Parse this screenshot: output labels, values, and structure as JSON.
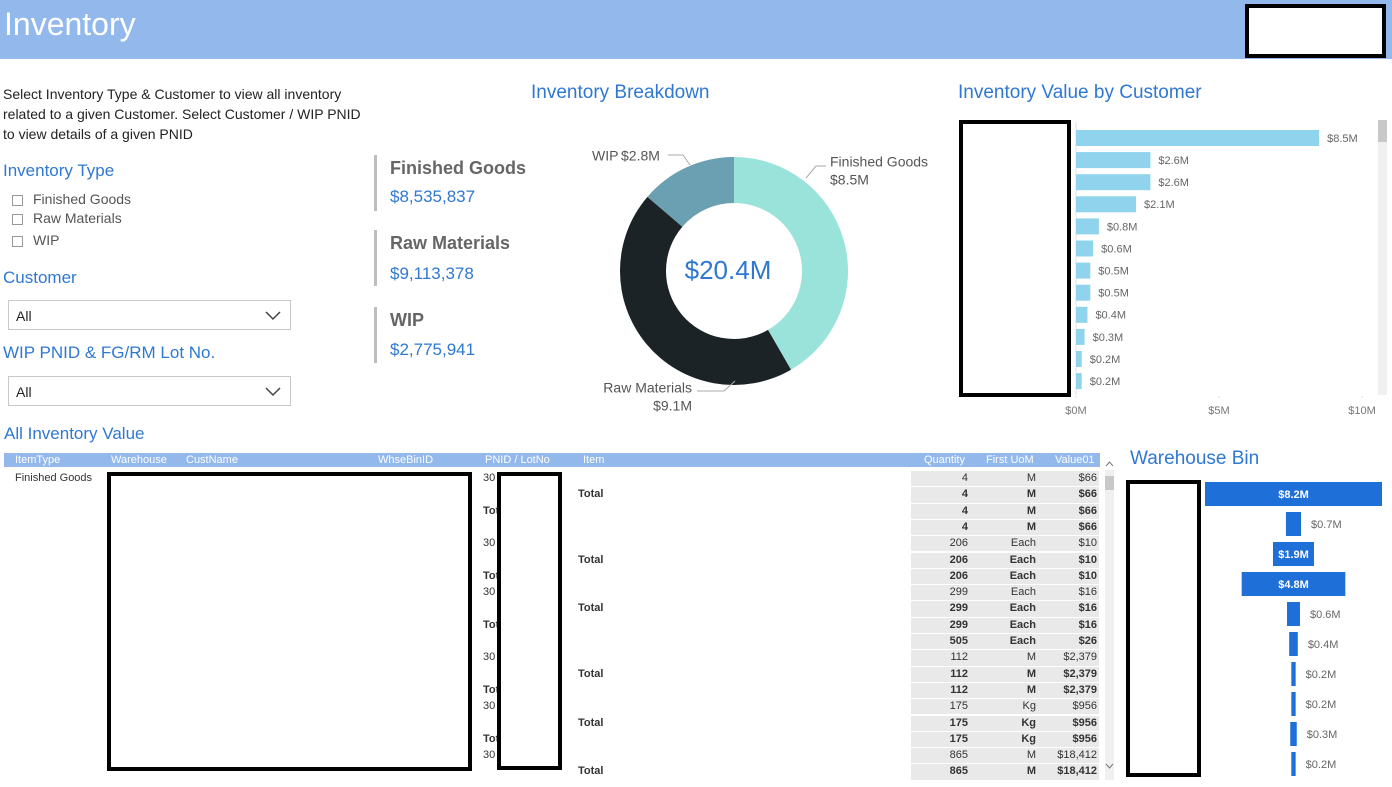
{
  "header": {
    "title": "Inventory"
  },
  "filters": {
    "description": "Select Inventory Type & Customer to view all inventory related to a given Customer. Select Customer / WIP PNID to view details of a given PNID",
    "inventory_type": {
      "title": "Inventory Type",
      "options": [
        "Finished Goods",
        "Raw Materials",
        "WIP"
      ]
    },
    "customer": {
      "title": "Customer",
      "selected": "All"
    },
    "lot": {
      "title": "WIP PNID & FG/RM Lot No.",
      "selected": "All"
    }
  },
  "cards": [
    {
      "label": "Finished Goods",
      "value": "$8,535,837"
    },
    {
      "label": "Raw Materials",
      "value": "$9,113,378"
    },
    {
      "label": "WIP",
      "value": "$2,775,941"
    }
  ],
  "chart_data": [
    {
      "type": "pie",
      "donut": true,
      "title": "Inventory Breakdown",
      "center_label": "$20.4M",
      "categories": [
        "Finished Goods",
        "Raw Materials",
        "WIP"
      ],
      "values": [
        8.5,
        9.1,
        2.8
      ],
      "value_labels": [
        "$8.5M",
        "$9.1M",
        "$2.8M"
      ],
      "colors": [
        "#9ae3db",
        "#1c2326",
        "#6aa0b1"
      ]
    },
    {
      "type": "hbar",
      "title": "Inventory Value by Customer",
      "categories": [
        null,
        null,
        null,
        null,
        null,
        null,
        null,
        null,
        null,
        null,
        null,
        null
      ],
      "values": [
        8.5,
        2.6,
        2.6,
        2.1,
        0.8,
        0.6,
        0.5,
        0.5,
        0.4,
        0.3,
        0.2,
        0.2
      ],
      "value_labels": [
        "$8.5M",
        "$2.6M",
        "$2.6M",
        "$2.1M",
        "$0.8M",
        "$0.6M",
        "$0.5M",
        "$0.5M",
        "$0.4M",
        "$0.3M",
        "$0.2M",
        "$0.2M"
      ],
      "color": "#8fd4ec",
      "xlim": [
        0,
        10
      ],
      "xticks": [
        {
          "value": 0,
          "label": "$0M"
        },
        {
          "value": 5,
          "label": "$5M"
        },
        {
          "value": 10,
          "label": "$10M"
        }
      ]
    },
    {
      "type": "funnel",
      "title": "Warehouse Bin",
      "categories": [
        null,
        null,
        null,
        null,
        null,
        null,
        null,
        null,
        null,
        null
      ],
      "values": [
        8.2,
        0.7,
        1.9,
        4.8,
        0.6,
        0.4,
        0.2,
        0.2,
        0.3,
        0.2
      ],
      "value_labels": [
        "$8.2M",
        "$0.7M",
        "$1.9M",
        "$4.8M",
        "$0.6M",
        "$0.4M",
        "$0.2M",
        "$0.2M",
        "$0.3M",
        "$0.2M"
      ],
      "color": "#1f6fd8"
    }
  ],
  "table": {
    "title": "All Inventory Value",
    "columns": [
      "ItemType",
      "Warehouse",
      "CustName",
      "WhseBinID",
      "PNID / LotNo",
      "Item",
      "Quantity",
      "First UoM",
      "Value01"
    ],
    "rows": [
      {
        "item_type": "Finished Goods",
        "pnid": "30",
        "quantity": 4,
        "uom": "M",
        "value": "$66"
      },
      {
        "item": "Total",
        "quantity": 4,
        "uom": "M",
        "value": "$66",
        "total": true
      },
      {
        "pnid": "Tot",
        "quantity": 4,
        "uom": "M",
        "value": "$66",
        "total": true
      },
      {
        "quantity": 4,
        "uom": "M",
        "value": "$66",
        "total": true
      },
      {
        "pnid": "30",
        "quantity": 206,
        "uom": "Each",
        "value": "$10"
      },
      {
        "item": "Total",
        "quantity": 206,
        "uom": "Each",
        "value": "$10",
        "total": true
      },
      {
        "pnid": "Tot",
        "quantity": 206,
        "uom": "Each",
        "value": "$10",
        "total": true
      },
      {
        "pnid": "30",
        "quantity": 299,
        "uom": "Each",
        "value": "$16"
      },
      {
        "item": "Total",
        "quantity": 299,
        "uom": "Each",
        "value": "$16",
        "total": true
      },
      {
        "pnid": "Tot",
        "quantity": 299,
        "uom": "Each",
        "value": "$16",
        "total": true
      },
      {
        "quantity": 505,
        "uom": "Each",
        "value": "$26",
        "total": true
      },
      {
        "pnid": "30",
        "quantity": 112,
        "uom": "M",
        "value": "$2,379"
      },
      {
        "item": "Total",
        "quantity": 112,
        "uom": "M",
        "value": "$2,379",
        "total": true
      },
      {
        "pnid": "Tot",
        "quantity": 112,
        "uom": "M",
        "value": "$2,379",
        "total": true
      },
      {
        "pnid": "30",
        "quantity": 175,
        "uom": "Kg",
        "value": "$956"
      },
      {
        "item": "Total",
        "quantity": 175,
        "uom": "Kg",
        "value": "$956",
        "total": true
      },
      {
        "pnid": "Tot",
        "quantity": 175,
        "uom": "Kg",
        "value": "$956",
        "total": true
      },
      {
        "pnid": "30",
        "quantity": 865,
        "uom": "M",
        "value": "$18,412"
      },
      {
        "item": "Total",
        "quantity": 865,
        "uom": "M",
        "value": "$18,412",
        "total": true
      }
    ]
  }
}
